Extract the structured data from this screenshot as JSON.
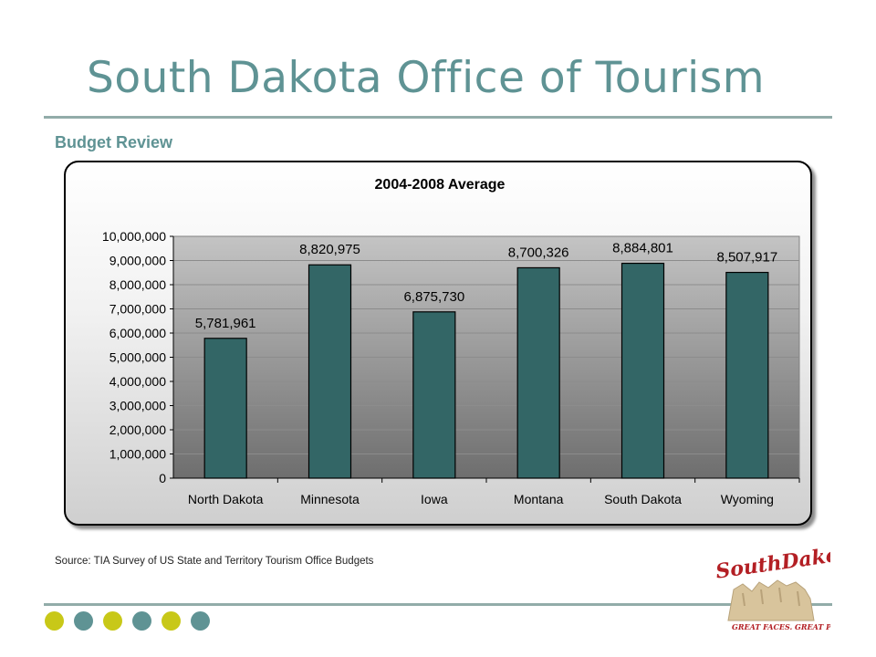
{
  "header": {
    "title": "South Dakota Office of Tourism",
    "subtitle": "Budget Review"
  },
  "footer": {
    "source": "Source: TIA Survey of US State and Territory Tourism Office Budgets",
    "dot_colors": [
      "#c8c818",
      "#5f9394",
      "#c8c818",
      "#5f9394",
      "#c8c818",
      "#5f9394"
    ]
  },
  "logo": {
    "text": "SouthDakota",
    "tagline": "GREAT FACES. GREAT PLACES."
  },
  "colors": {
    "title": "#5f9394",
    "bar": "#336666",
    "plot_top": "#c0c0c0",
    "plot_bottom": "#707070"
  },
  "chart_data": {
    "type": "bar",
    "title": "2004-2008 Average",
    "categories": [
      "North Dakota",
      "Minnesota",
      "Iowa",
      "Montana",
      "South Dakota",
      "Wyoming"
    ],
    "values": [
      5781961,
      8820975,
      6875730,
      8700326,
      8884801,
      8507917
    ],
    "data_labels": [
      "5,781,961",
      "8,820,975",
      "6,875,730",
      "8,700,326",
      "8,884,801",
      "8,507,917"
    ],
    "ylim": [
      0,
      10000000
    ],
    "yticks": [
      0,
      1000000,
      2000000,
      3000000,
      4000000,
      5000000,
      6000000,
      7000000,
      8000000,
      9000000,
      10000000
    ],
    "ytick_labels": [
      "0",
      "1,000,000",
      "2,000,000",
      "3,000,000",
      "4,000,000",
      "5,000,000",
      "6,000,000",
      "7,000,000",
      "8,000,000",
      "9,000,000",
      "10,000,000"
    ],
    "xlabel": "",
    "ylabel": "",
    "grid": true,
    "legend": "none"
  }
}
